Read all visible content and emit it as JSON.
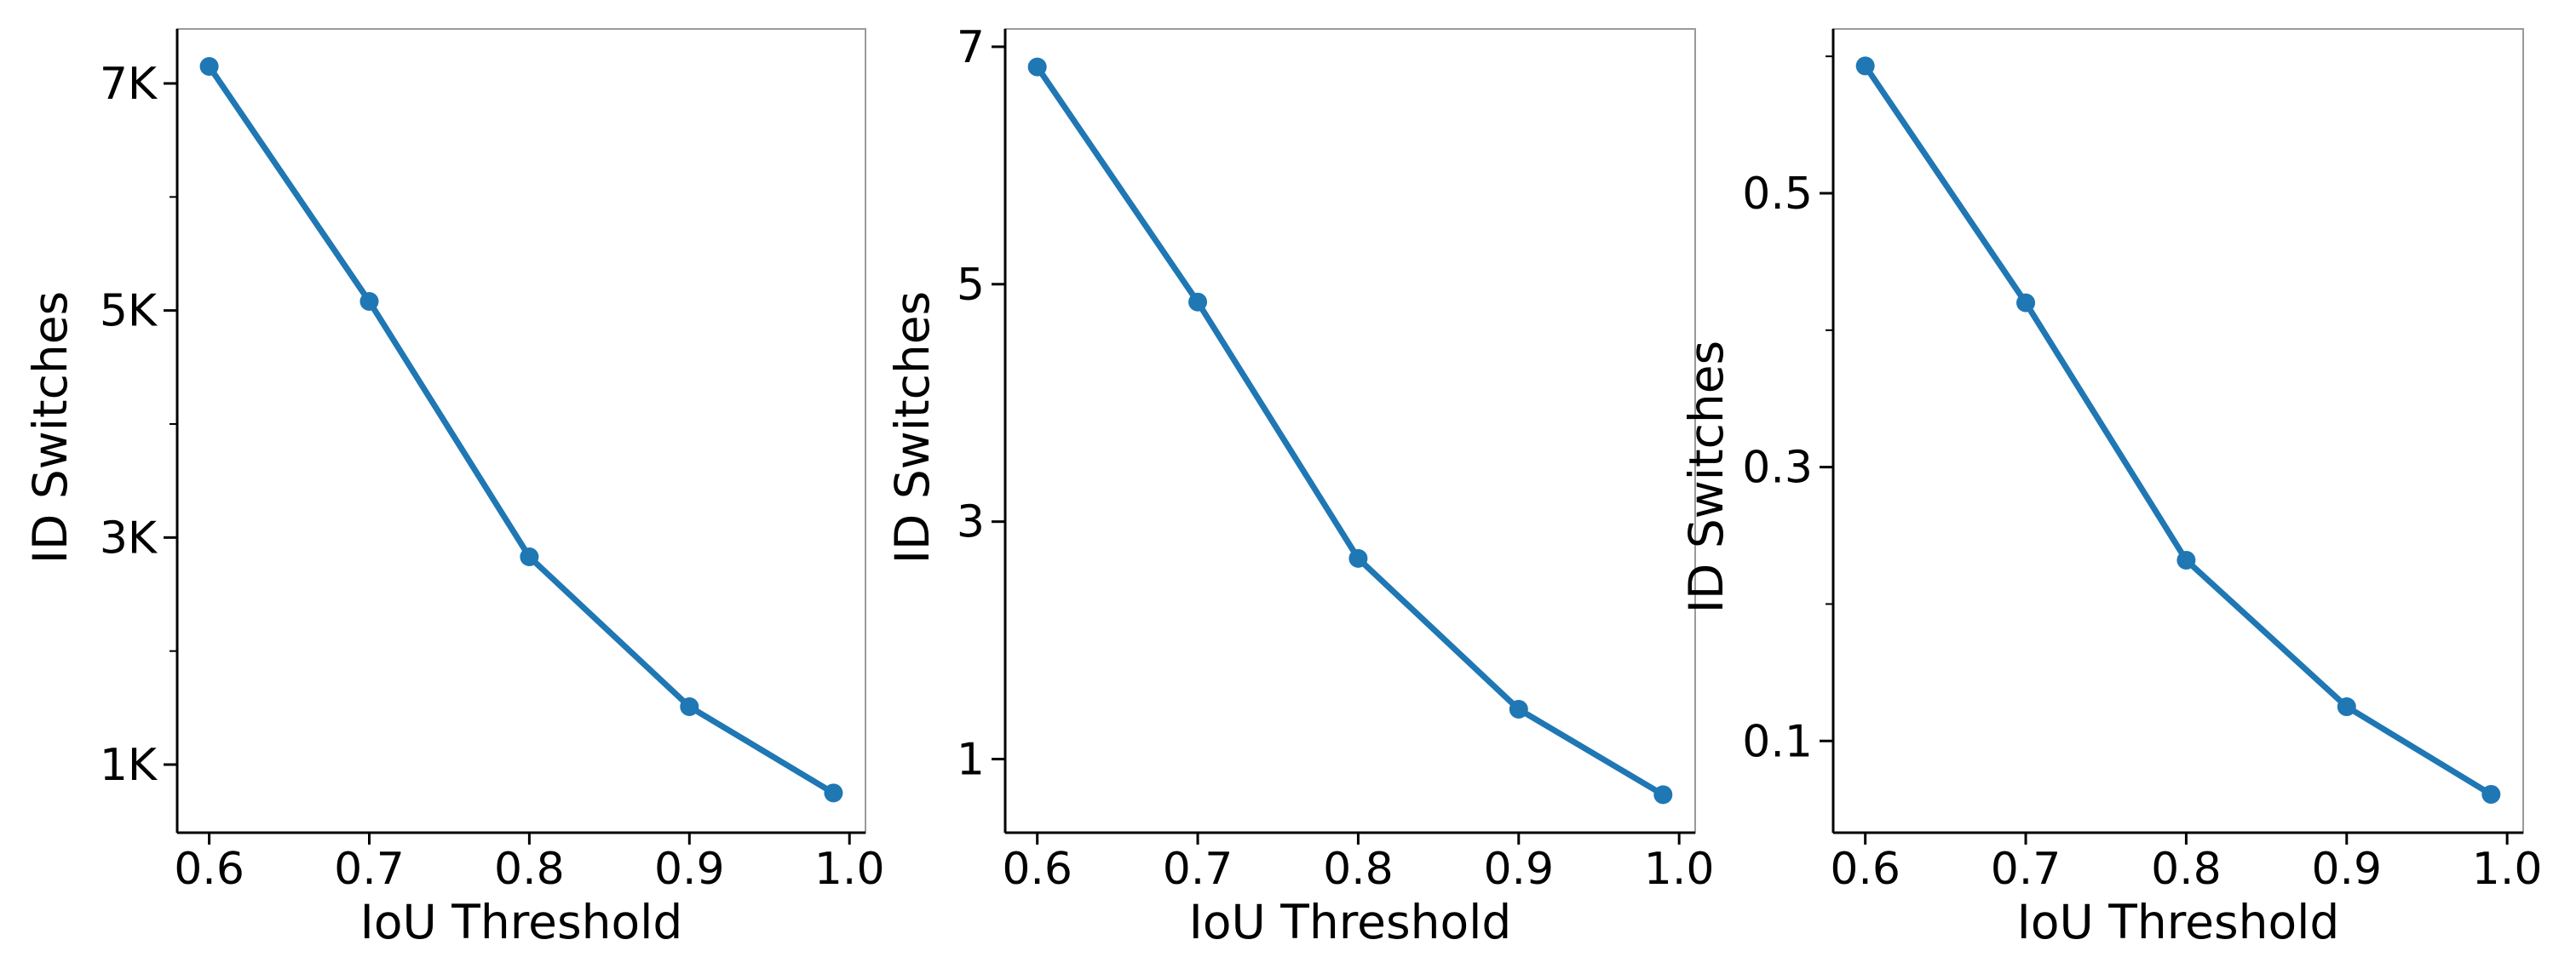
{
  "accent_color": "#1f77b4",
  "chart_data": [
    {
      "type": "line",
      "name": "panel-1",
      "x": [
        0.6,
        0.7,
        0.8,
        0.9,
        0.99
      ],
      "y": [
        7150,
        5080,
        2830,
        1510,
        750
      ],
      "xlabel": "IoU Threshold",
      "ylabel": "ID Switches",
      "xlim": [
        0.58,
        1.01
      ],
      "ylim": [
        400,
        7480
      ],
      "xticks": [
        0.6,
        0.7,
        0.8,
        0.9,
        1.0
      ],
      "xtick_labels": [
        "0.6",
        "0.7",
        "0.8",
        "0.9",
        "1.0"
      ],
      "yticks": [
        1000,
        3000,
        5000,
        7000
      ],
      "ytick_labels": [
        "1K",
        "3K",
        "5K",
        "7K"
      ],
      "yminor": [
        2000,
        4000,
        6000
      ],
      "series_color": "#1f77b4"
    },
    {
      "type": "line",
      "name": "panel-2",
      "x": [
        0.6,
        0.7,
        0.8,
        0.9,
        0.99
      ],
      "y": [
        6.83,
        4.85,
        2.69,
        1.42,
        0.7
      ],
      "xlabel": "IoU Threshold",
      "ylabel": "ID Switches",
      "xlim": [
        0.58,
        1.01
      ],
      "ylim": [
        0.38,
        7.15
      ],
      "xticks": [
        0.6,
        0.7,
        0.8,
        0.9,
        1.0
      ],
      "xtick_labels": [
        "0.6",
        "0.7",
        "0.8",
        "0.9",
        "1.0"
      ],
      "yticks": [
        1,
        3,
        5,
        7
      ],
      "ytick_labels": [
        "1",
        "3",
        "5",
        "7"
      ],
      "yminor": [],
      "series_color": "#1f77b4"
    },
    {
      "type": "line",
      "name": "panel-3",
      "x": [
        0.6,
        0.7,
        0.8,
        0.9,
        0.99
      ],
      "y": [
        0.593,
        0.42,
        0.232,
        0.125,
        0.061
      ],
      "xlabel": "IoU Threshold",
      "ylabel": "ID Switches",
      "xlim": [
        0.58,
        1.01
      ],
      "ylim": [
        0.033,
        0.62
      ],
      "xticks": [
        0.6,
        0.7,
        0.8,
        0.9,
        1.0
      ],
      "xtick_labels": [
        "0.6",
        "0.7",
        "0.8",
        "0.9",
        "1.0"
      ],
      "yticks": [
        0.1,
        0.3,
        0.5
      ],
      "ytick_labels": [
        "0.1",
        "0.3",
        "0.5"
      ],
      "yminor": [
        0.2,
        0.4,
        0.6
      ],
      "series_color": "#1f77b4"
    }
  ]
}
